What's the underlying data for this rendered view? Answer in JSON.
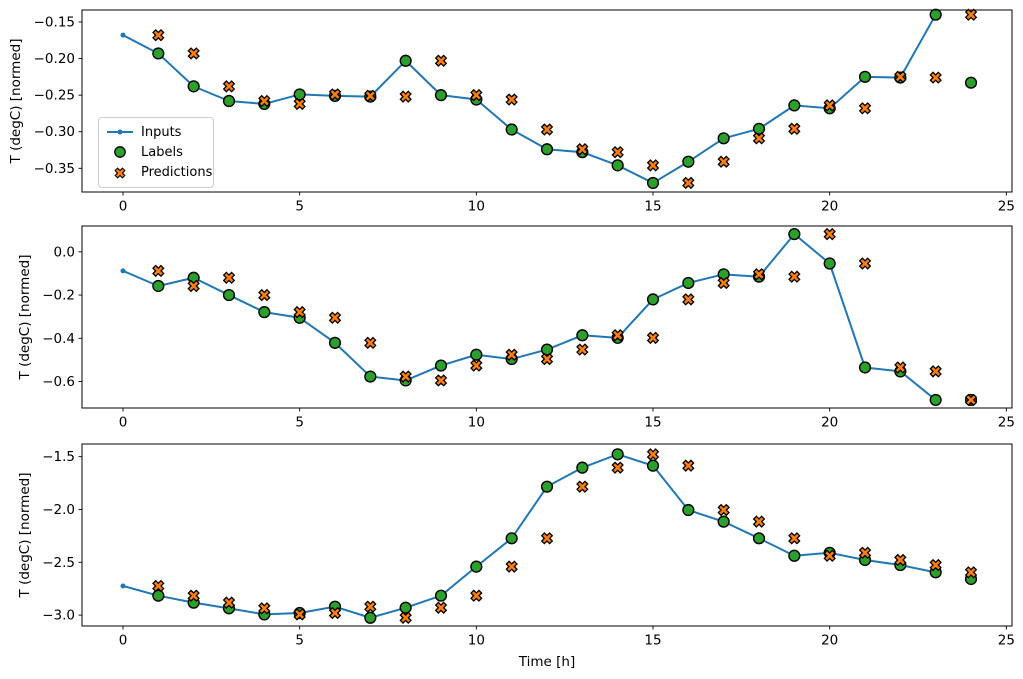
{
  "figure": {
    "background": "#ffffff",
    "xlabel": "Time [h]",
    "legend": {
      "entries": [
        {
          "label": "Inputs",
          "marker": "line",
          "color": "#1f77b4"
        },
        {
          "label": "Labels",
          "marker": "circle",
          "color": "#2ca02c"
        },
        {
          "label": "Predictions",
          "marker": "x",
          "color": "#ff7f0e"
        }
      ]
    },
    "colors": {
      "inputs": "#1f77b4",
      "labels": "#2ca02c",
      "predictions": "#ff7f0e",
      "marker_edge": "#000000",
      "axes": "#000000"
    }
  },
  "chart_data": [
    {
      "type": "line",
      "ylabel": "T (degC) [normed]",
      "xlim": [
        -1.16,
        25.16
      ],
      "ylim": [
        -0.3824,
        -0.1336
      ],
      "xticks": [
        0,
        5,
        10,
        15,
        20,
        25
      ],
      "xtick_labels": [
        "0",
        "5",
        "10",
        "15",
        "20",
        "25"
      ],
      "yticks": [
        -0.15,
        -0.2,
        -0.25,
        -0.3,
        -0.35
      ],
      "ytick_labels": [
        "−0.15",
        "−0.20",
        "−0.25",
        "−0.30",
        "−0.35"
      ],
      "legend_visible": true,
      "series": [
        {
          "name": "Inputs",
          "marker": "line",
          "color": "#1f77b4",
          "x": [
            0,
            1,
            2,
            3,
            4,
            5,
            6,
            7,
            8,
            9,
            10,
            11,
            12,
            13,
            14,
            15,
            16,
            17,
            18,
            19,
            20,
            21,
            22,
            23
          ],
          "y": [
            -0.168,
            -0.193,
            -0.238,
            -0.258,
            -0.262,
            -0.249,
            -0.251,
            -0.252,
            -0.203,
            -0.25,
            -0.256,
            -0.297,
            -0.324,
            -0.328,
            -0.346,
            -0.37,
            -0.341,
            -0.309,
            -0.296,
            -0.264,
            -0.268,
            -0.225,
            -0.226,
            -0.14
          ]
        },
        {
          "name": "Labels",
          "marker": "circle",
          "color": "#2ca02c",
          "x": [
            1,
            2,
            3,
            4,
            5,
            6,
            7,
            8,
            9,
            10,
            11,
            12,
            13,
            14,
            15,
            16,
            17,
            18,
            19,
            20,
            21,
            22,
            23,
            24
          ],
          "y": [
            -0.193,
            -0.238,
            -0.258,
            -0.262,
            -0.249,
            -0.251,
            -0.252,
            -0.203,
            -0.25,
            -0.256,
            -0.297,
            -0.324,
            -0.328,
            -0.346,
            -0.37,
            -0.341,
            -0.309,
            -0.296,
            -0.264,
            -0.268,
            -0.225,
            -0.226,
            -0.14,
            -0.233
          ]
        },
        {
          "name": "Predictions",
          "marker": "x",
          "color": "#ff7f0e",
          "x": [
            1,
            2,
            3,
            4,
            5,
            6,
            7,
            8,
            9,
            10,
            11,
            12,
            13,
            14,
            15,
            16,
            17,
            18,
            19,
            20,
            21,
            22,
            23,
            24
          ],
          "y": [
            -0.168,
            -0.193,
            -0.238,
            -0.258,
            -0.262,
            -0.249,
            -0.251,
            -0.252,
            -0.203,
            -0.25,
            -0.256,
            -0.297,
            -0.324,
            -0.328,
            -0.346,
            -0.37,
            -0.341,
            -0.309,
            -0.296,
            -0.264,
            -0.268,
            -0.225,
            -0.226,
            -0.14
          ]
        }
      ]
    },
    {
      "type": "line",
      "ylabel": "T (degC) [normed]",
      "xlim": [
        -1.16,
        25.16
      ],
      "ylim": [
        -0.7224,
        0.1195
      ],
      "xticks": [
        0,
        5,
        10,
        15,
        20,
        25
      ],
      "xtick_labels": [
        "0",
        "5",
        "10",
        "15",
        "20",
        "25"
      ],
      "yticks": [
        0.0,
        -0.2,
        -0.4,
        -0.6
      ],
      "ytick_labels": [
        "0.0",
        "−0.2",
        "−0.4",
        "−0.6"
      ],
      "legend_visible": false,
      "series": [
        {
          "name": "Inputs",
          "marker": "line",
          "color": "#1f77b4",
          "x": [
            0,
            1,
            2,
            3,
            4,
            5,
            6,
            7,
            8,
            9,
            10,
            11,
            12,
            13,
            14,
            15,
            16,
            17,
            18,
            19,
            20,
            21,
            22,
            23
          ],
          "y": [
            -0.088,
            -0.158,
            -0.12,
            -0.2,
            -0.279,
            -0.305,
            -0.421,
            -0.577,
            -0.595,
            -0.526,
            -0.476,
            -0.496,
            -0.452,
            -0.386,
            -0.398,
            -0.22,
            -0.144,
            -0.104,
            -0.115,
            0.082,
            -0.054,
            -0.535,
            -0.553,
            -0.685
          ]
        },
        {
          "name": "Labels",
          "marker": "circle",
          "color": "#2ca02c",
          "x": [
            1,
            2,
            3,
            4,
            5,
            6,
            7,
            8,
            9,
            10,
            11,
            12,
            13,
            14,
            15,
            16,
            17,
            18,
            19,
            20,
            21,
            22,
            23,
            24
          ],
          "y": [
            -0.158,
            -0.12,
            -0.2,
            -0.279,
            -0.305,
            -0.421,
            -0.577,
            -0.595,
            -0.526,
            -0.476,
            -0.496,
            -0.452,
            -0.386,
            -0.398,
            -0.22,
            -0.144,
            -0.104,
            -0.115,
            0.082,
            -0.054,
            -0.535,
            -0.553,
            -0.685,
            -0.685
          ]
        },
        {
          "name": "Predictions",
          "marker": "x",
          "color": "#ff7f0e",
          "x": [
            1,
            2,
            3,
            4,
            5,
            6,
            7,
            8,
            9,
            10,
            11,
            12,
            13,
            14,
            15,
            16,
            17,
            18,
            19,
            20,
            21,
            22,
            23,
            24
          ],
          "y": [
            -0.088,
            -0.158,
            -0.12,
            -0.2,
            -0.279,
            -0.305,
            -0.421,
            -0.577,
            -0.595,
            -0.526,
            -0.476,
            -0.496,
            -0.452,
            -0.386,
            -0.398,
            -0.22,
            -0.144,
            -0.104,
            -0.115,
            0.082,
            -0.054,
            -0.535,
            -0.553,
            -0.685
          ]
        }
      ]
    },
    {
      "type": "line",
      "ylabel": "T (degC) [normed]",
      "xlim": [
        -1.16,
        25.16
      ],
      "ylim": [
        -3.103,
        -1.38
      ],
      "xticks": [
        0,
        5,
        10,
        15,
        20,
        25
      ],
      "xtick_labels": [
        "0",
        "5",
        "10",
        "15",
        "20",
        "25"
      ],
      "yticks": [
        -1.5,
        -2.0,
        -2.5,
        -3.0
      ],
      "ytick_labels": [
        "−1.5",
        "−2.0",
        "−2.5",
        "−3.0"
      ],
      "legend_visible": false,
      "series": [
        {
          "name": "Inputs",
          "marker": "line",
          "color": "#1f77b4",
          "x": [
            0,
            1,
            2,
            3,
            4,
            5,
            6,
            7,
            8,
            9,
            10,
            11,
            12,
            13,
            14,
            15,
            16,
            17,
            18,
            19,
            20,
            21,
            22,
            23
          ],
          "y": [
            -2.724,
            -2.816,
            -2.882,
            -2.936,
            -2.993,
            -2.98,
            -2.92,
            -3.025,
            -2.93,
            -2.816,
            -2.541,
            -2.273,
            -1.784,
            -1.604,
            -1.478,
            -1.585,
            -2.005,
            -2.115,
            -2.273,
            -2.438,
            -2.41,
            -2.478,
            -2.526,
            -2.595
          ]
        },
        {
          "name": "Labels",
          "marker": "circle",
          "color": "#2ca02c",
          "x": [
            1,
            2,
            3,
            4,
            5,
            6,
            7,
            8,
            9,
            10,
            11,
            12,
            13,
            14,
            15,
            16,
            17,
            18,
            19,
            20,
            21,
            22,
            23,
            24
          ],
          "y": [
            -2.816,
            -2.882,
            -2.936,
            -2.993,
            -2.98,
            -2.92,
            -3.025,
            -2.93,
            -2.816,
            -2.541,
            -2.273,
            -1.784,
            -1.604,
            -1.478,
            -1.585,
            -2.005,
            -2.115,
            -2.273,
            -2.438,
            -2.41,
            -2.478,
            -2.526,
            -2.595,
            -2.658
          ]
        },
        {
          "name": "Predictions",
          "marker": "x",
          "color": "#ff7f0e",
          "x": [
            1,
            2,
            3,
            4,
            5,
            6,
            7,
            8,
            9,
            10,
            11,
            12,
            13,
            14,
            15,
            16,
            17,
            18,
            19,
            20,
            21,
            22,
            23,
            24
          ],
          "y": [
            -2.724,
            -2.816,
            -2.882,
            -2.936,
            -2.993,
            -2.98,
            -2.92,
            -3.025,
            -2.93,
            -2.816,
            -2.541,
            -2.273,
            -1.784,
            -1.604,
            -1.478,
            -1.585,
            -2.005,
            -2.115,
            -2.273,
            -2.438,
            -2.41,
            -2.478,
            -2.526,
            -2.595
          ]
        }
      ]
    }
  ]
}
